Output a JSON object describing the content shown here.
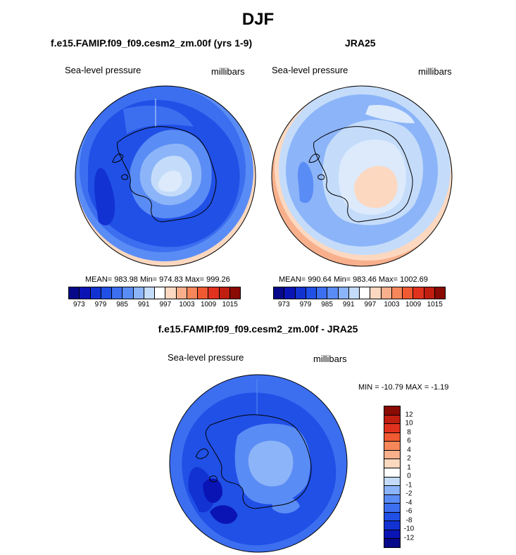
{
  "title": "DJF",
  "panels": {
    "model": {
      "title": "f.e15.FAMIP.f09_f09.cesm2_zm.00f (yrs 1-9)",
      "variable": "Sea-level pressure",
      "units": "millibars",
      "stats": "MEAN= 983.98  Min= 974.83  Max= 999.26"
    },
    "obs": {
      "title": "JRA25",
      "variable": "Sea-level pressure",
      "units": "millibars",
      "stats": "MEAN= 990.64  Min= 983.46  Max= 1002.69"
    },
    "diff": {
      "title": "f.e15.FAMIP.f09_f09.cesm2_zm.00f - JRA25",
      "variable": "Sea-level pressure",
      "units": "millibars",
      "stats": "MIN = -10.79 MAX =  -1.19"
    }
  },
  "colorbar_main": {
    "colors": [
      "#08088a",
      "#0a14b4",
      "#1232d2",
      "#2050e6",
      "#3c6ef0",
      "#5a8cf5",
      "#8cb4f8",
      "#c4dcfa",
      "#ffffff",
      "#fcd8c0",
      "#f8b08c",
      "#f5875a",
      "#f05a32",
      "#e0321e",
      "#c01e10",
      "#8a0a04"
    ],
    "ticks": [
      "973",
      "979",
      "985",
      "991",
      "997",
      "1003",
      "1009",
      "1015"
    ]
  },
  "colorbar_diff": {
    "colors": [
      "#08088a",
      "#0a14b4",
      "#1232d2",
      "#2050e6",
      "#3c6ef0",
      "#5a8cf5",
      "#8cb4f8",
      "#c4dcfa",
      "#ffffff",
      "#fcd8c0",
      "#f8b08c",
      "#f5875a",
      "#f05a32",
      "#e0321e",
      "#c01e10",
      "#8a0a04"
    ],
    "ticks": [
      "-12",
      "-10",
      "-8",
      "-6",
      "-4",
      "-2",
      "-1",
      "0",
      "1",
      "2",
      "4",
      "6",
      "8",
      "10",
      "12"
    ]
  }
}
